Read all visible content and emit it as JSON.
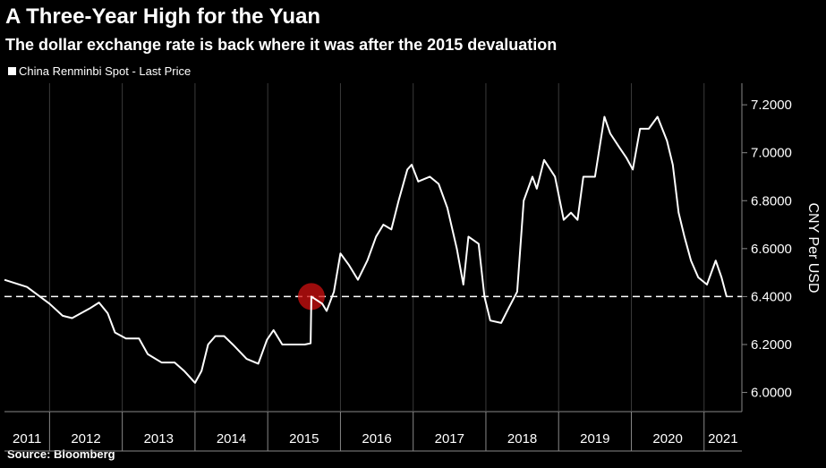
{
  "chart_data": {
    "type": "line",
    "title": "A Three-Year High for the Yuan",
    "subtitle": "The dollar exchange rate is back where it was after the 2015 devaluation",
    "y_label": "CNY Per USD",
    "source": "Source: Bloomberg",
    "grid": "x",
    "reference_line": 6.4,
    "highlight": {
      "x": 2015.6,
      "y": 6.4,
      "color": "#d01010"
    },
    "xlim": [
      2011.38,
      2021.52
    ],
    "xticks": [
      2011,
      2012,
      2013,
      2014,
      2015,
      2016,
      2017,
      2018,
      2019,
      2020,
      2021
    ],
    "ylim": [
      5.92,
      7.29
    ],
    "yticks": [
      {
        "value": 6.0,
        "label": "6.0000"
      },
      {
        "value": 6.2,
        "label": "6.2000"
      },
      {
        "value": 6.4,
        "label": "6.4000"
      },
      {
        "value": 6.6,
        "label": "6.6000"
      },
      {
        "value": 6.8,
        "label": "6.8000"
      },
      {
        "value": 7.0,
        "label": "7.0000"
      },
      {
        "value": 7.2,
        "label": "7.2000"
      }
    ],
    "x": [
      2011.38,
      2011.69,
      2012.0,
      2012.18,
      2012.31,
      2012.55,
      2012.68,
      2012.8,
      2012.9,
      2013.05,
      2013.23,
      2013.35,
      2013.54,
      2013.72,
      2013.85,
      2014.0,
      2014.09,
      2014.18,
      2014.28,
      2014.4,
      2014.52,
      2014.71,
      2014.87,
      2014.99,
      2015.08,
      2015.2,
      2015.51,
      2015.59,
      2015.6,
      2015.75,
      2015.81,
      2015.91,
      2016.0,
      2016.12,
      2016.24,
      2016.37,
      2016.49,
      2016.59,
      2016.7,
      2016.8,
      2016.92,
      2016.98,
      2017.07,
      2017.23,
      2017.35,
      2017.47,
      2017.6,
      2017.69,
      2017.76,
      2017.9,
      2017.98,
      2018.06,
      2018.21,
      2018.31,
      2018.43,
      2018.52,
      2018.64,
      2018.7,
      2018.8,
      2018.95,
      2019.07,
      2019.17,
      2019.26,
      2019.34,
      2019.5,
      2019.63,
      2019.71,
      2019.84,
      2019.93,
      2020.02,
      2020.12,
      2020.24,
      2020.36,
      2020.49,
      2020.57,
      2020.65,
      2020.73,
      2020.82,
      2020.92,
      2021.04,
      2021.16,
      2021.24,
      2021.31
    ],
    "series": [
      {
        "name": "China Renminbi Spot - Last Price",
        "color": "#ffffff",
        "values": [
          6.47,
          6.44,
          6.37,
          6.32,
          6.31,
          6.35,
          6.375,
          6.33,
          6.25,
          6.225,
          6.225,
          6.16,
          6.125,
          6.125,
          6.09,
          6.04,
          6.09,
          6.2,
          6.235,
          6.235,
          6.2,
          6.14,
          6.12,
          6.22,
          6.26,
          6.2,
          6.2,
          6.205,
          6.4,
          6.37,
          6.34,
          6.42,
          6.58,
          6.53,
          6.47,
          6.55,
          6.65,
          6.7,
          6.68,
          6.8,
          6.93,
          6.95,
          6.88,
          6.9,
          6.87,
          6.77,
          6.6,
          6.45,
          6.65,
          6.62,
          6.4,
          6.3,
          6.29,
          6.35,
          6.42,
          6.8,
          6.9,
          6.85,
          6.97,
          6.9,
          6.72,
          6.75,
          6.72,
          6.9,
          6.9,
          7.15,
          7.08,
          7.02,
          6.98,
          6.93,
          7.1,
          7.1,
          7.15,
          7.05,
          6.95,
          6.75,
          6.65,
          6.55,
          6.48,
          6.45,
          6.55,
          6.48,
          6.4
        ]
      }
    ]
  }
}
